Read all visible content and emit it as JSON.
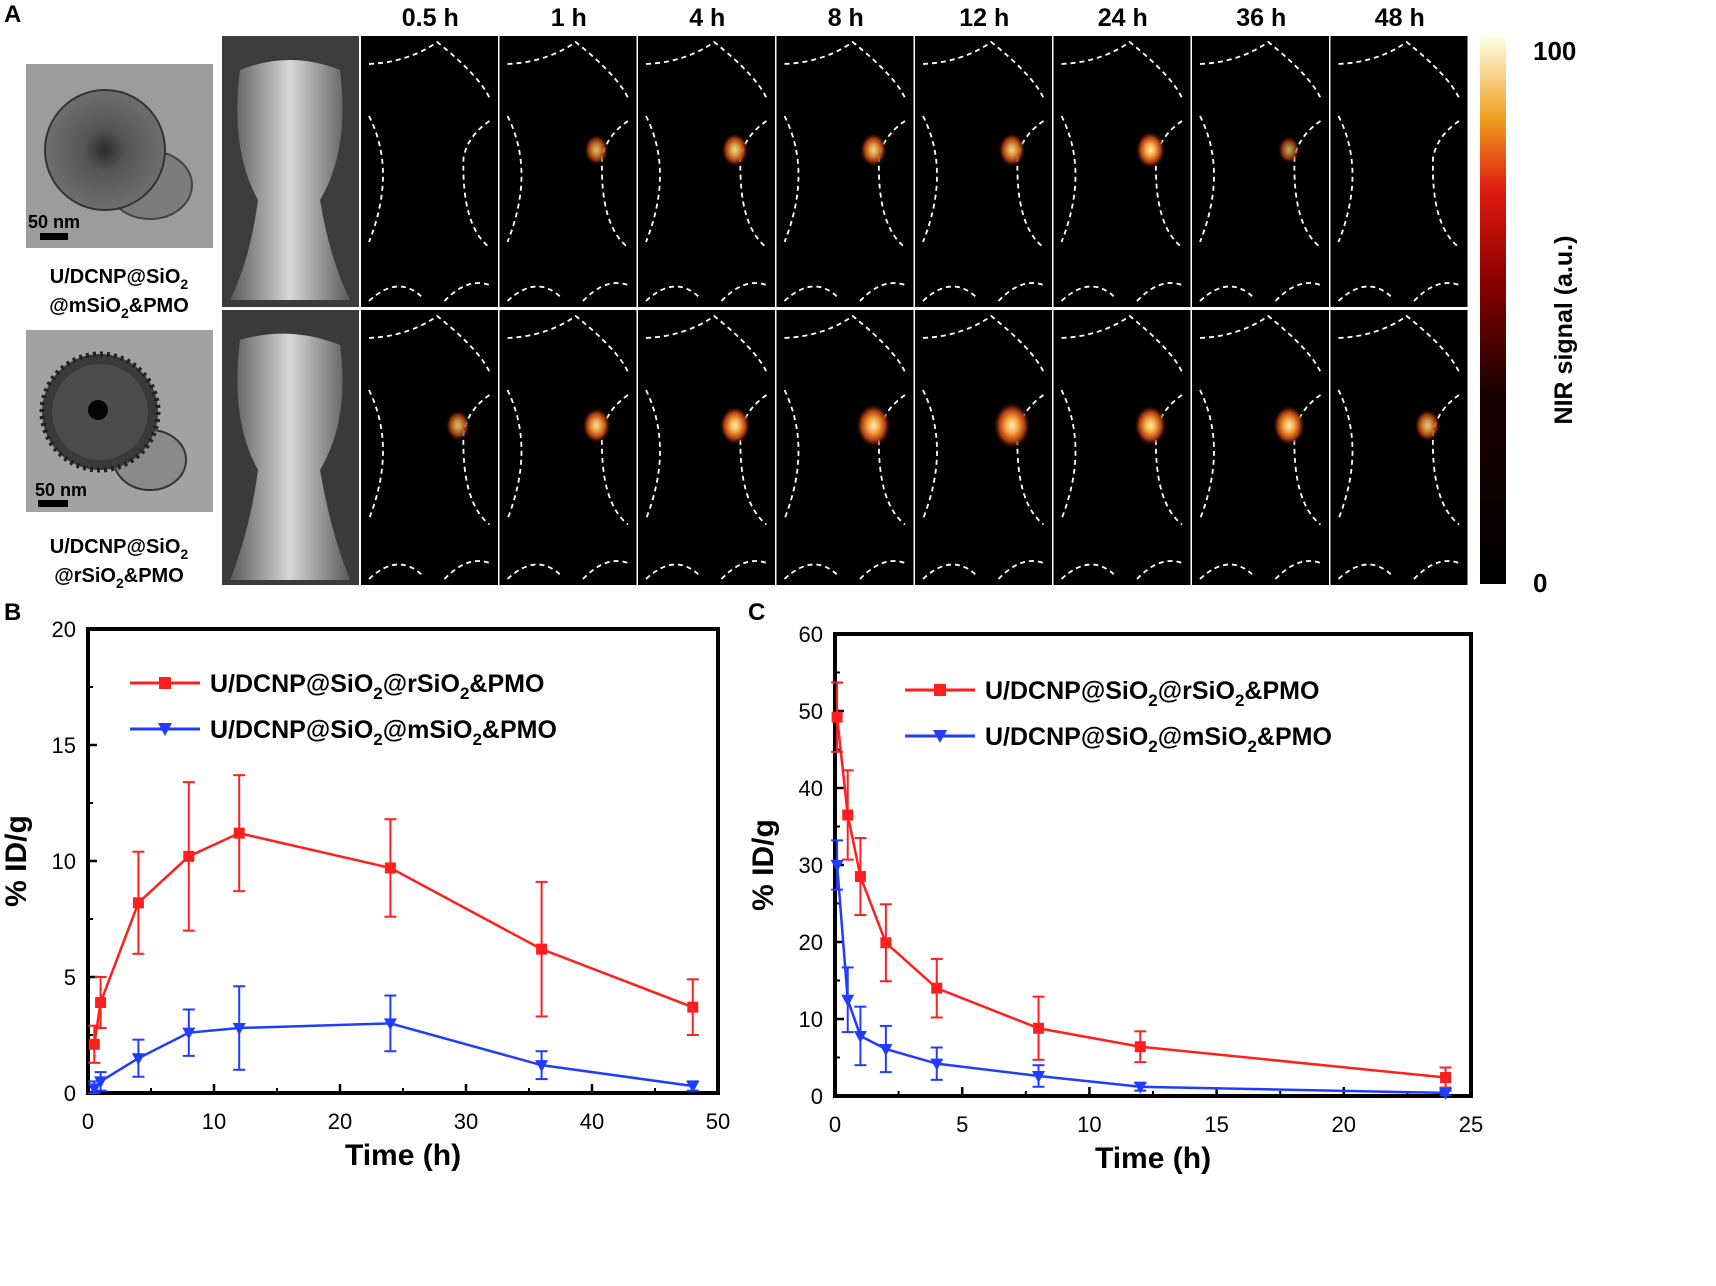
{
  "panel_a": {
    "letter": "A",
    "time_labels": [
      "0.5 h",
      "1 h",
      "4 h",
      "8 h",
      "12 h",
      "24 h",
      "36 h",
      "48 h"
    ],
    "rows": [
      {
        "scale_bar": "50 nm",
        "label_line1": "U/DCNP@SiO",
        "label_line1_sub": "2",
        "label_line2_pre": "@mSiO",
        "label_line2_sub": "2",
        "label_line2_post": "&PMO",
        "signal_intensity": [
          0,
          0.45,
          0.55,
          0.55,
          0.55,
          0.65,
          0.35,
          0
        ]
      },
      {
        "scale_bar": "50 nm",
        "label_line1": "U/DCNP@SiO",
        "label_line1_sub": "2",
        "label_line2_pre": "@rSiO",
        "label_line2_sub": "2",
        "label_line2_post": "&PMO",
        "signal_intensity": [
          0.45,
          0.6,
          0.7,
          0.85,
          0.95,
          0.75,
          0.75,
          0.5
        ]
      }
    ],
    "colorbar": {
      "label": "NIR signal (a.u.)",
      "max": "100",
      "min": "0"
    }
  },
  "colors": {
    "red": "#ff1f1f",
    "blue": "#1f3cff",
    "black": "#000000"
  },
  "chart_data": [
    {
      "panel": "B",
      "type": "line",
      "xlabel": "Time (h)",
      "ylabel": "% ID/g",
      "xlim": [
        0,
        50
      ],
      "ylim": [
        0,
        20
      ],
      "xticks": [
        0,
        10,
        20,
        30,
        40,
        50
      ],
      "yticks": [
        0,
        5,
        10,
        15,
        20
      ],
      "legend": "top-left",
      "series": [
        {
          "legend_main": "U/DCNP@SiO",
          "legend_sub1": "2",
          "legend_mid": "@rSiO",
          "legend_sub2": "2",
          "legend_end": "&PMO",
          "color": "#ff1f1f",
          "marker": "square",
          "x": [
            0.5,
            1,
            4,
            8,
            12,
            24,
            36,
            48
          ],
          "y": [
            2.1,
            3.9,
            8.2,
            10.2,
            11.2,
            9.7,
            6.2,
            3.7
          ],
          "err": [
            0.8,
            1.1,
            2.2,
            3.2,
            2.5,
            2.1,
            2.9,
            1.2
          ]
        },
        {
          "legend_main": "U/DCNP@SiO",
          "legend_sub1": "2",
          "legend_mid": "@mSiO",
          "legend_sub2": "2",
          "legend_end": "&PMO",
          "color": "#1f3cff",
          "marker": "triangle-down",
          "x": [
            0.5,
            1,
            4,
            8,
            12,
            24,
            36,
            48
          ],
          "y": [
            0.2,
            0.5,
            1.5,
            2.6,
            2.8,
            3.0,
            1.2,
            0.3
          ],
          "err": [
            0.3,
            0.4,
            0.8,
            1.0,
            1.8,
            1.2,
            0.6,
            0.2
          ]
        }
      ]
    },
    {
      "panel": "C",
      "type": "line",
      "xlabel": "Time (h)",
      "ylabel": "% ID/g",
      "xlim": [
        0,
        25
      ],
      "ylim": [
        0,
        60
      ],
      "xticks": [
        0,
        5,
        10,
        15,
        20,
        25
      ],
      "yticks": [
        0,
        10,
        20,
        30,
        40,
        50,
        60
      ],
      "legend": "top-center",
      "series": [
        {
          "legend_main": "U/DCNP@SiO",
          "legend_sub1": "2",
          "legend_mid": "@rSiO",
          "legend_sub2": "2",
          "legend_end": "&PMO",
          "color": "#ff1f1f",
          "marker": "square",
          "x": [
            0.083,
            0.5,
            1,
            2,
            4,
            8,
            12,
            24
          ],
          "y": [
            49.2,
            36.5,
            28.5,
            19.9,
            14.0,
            8.8,
            6.4,
            2.4
          ],
          "err": [
            4.5,
            5.8,
            5.0,
            5.0,
            3.8,
            4.1,
            2.0,
            1.3
          ]
        },
        {
          "legend_main": "U/DCNP@SiO",
          "legend_sub1": "2",
          "legend_mid": "@mSiO",
          "legend_sub2": "2",
          "legend_end": "&PMO",
          "color": "#1f3cff",
          "marker": "triangle-down",
          "x": [
            0.083,
            0.5,
            1,
            2,
            4,
            8,
            12,
            24
          ],
          "y": [
            30.0,
            12.5,
            7.8,
            6.1,
            4.2,
            2.6,
            1.2,
            0.4
          ],
          "err": [
            3.2,
            4.2,
            3.8,
            3.0,
            2.1,
            1.4,
            0.5,
            0.3
          ]
        }
      ]
    }
  ]
}
